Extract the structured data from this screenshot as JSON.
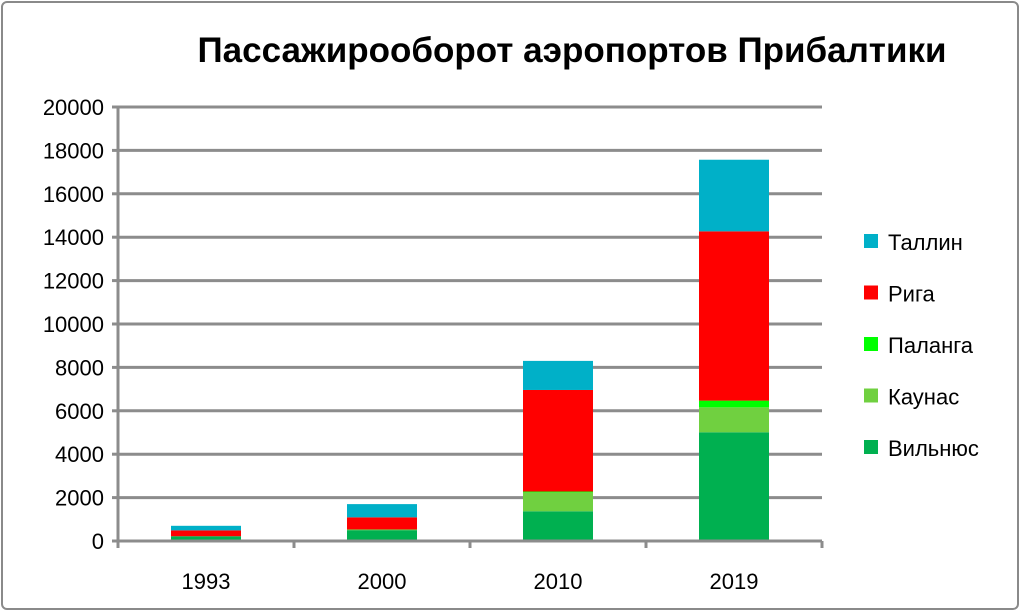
{
  "chart_data": {
    "type": "bar",
    "stacked": true,
    "title": "Пассажирооборот аэропортов Прибалтики",
    "xlabel": "",
    "ylabel": "",
    "categories": [
      "1993",
      "2000",
      "2010",
      "2019"
    ],
    "ylim": [
      0,
      20000
    ],
    "yticks": [
      "0",
      "2000",
      "4000",
      "6000",
      "8000",
      "10000",
      "12000",
      "14000",
      "16000",
      "18000",
      "20000"
    ],
    "grid": true,
    "legend_position": "right",
    "series": [
      {
        "name": "Вильнюс",
        "color": "#00b050",
        "values": [
          220,
          500,
          1370,
          5010
        ]
      },
      {
        "name": "Каунас",
        "color": "#70d040",
        "values": [
          0,
          20,
          870,
          1150
        ]
      },
      {
        "name": "Паланга",
        "color": "#00ff00",
        "values": [
          0,
          10,
          40,
          310
        ]
      },
      {
        "name": "Рига",
        "color": "#ff0000",
        "values": [
          270,
          560,
          4680,
          7800
        ]
      },
      {
        "name": "Таллин",
        "color": "#00b0c8",
        "values": [
          210,
          610,
          1340,
          3300
        ]
      }
    ]
  }
}
